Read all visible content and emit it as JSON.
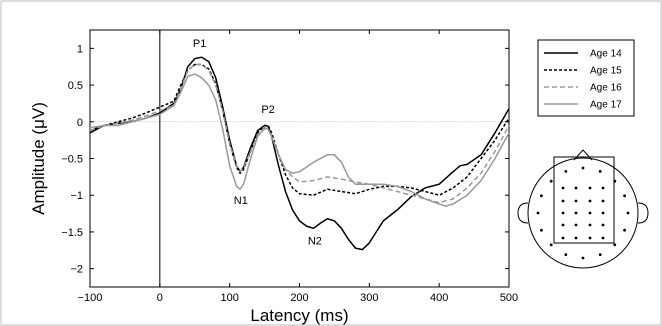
{
  "chart_data": {
    "type": "line",
    "xlabel": "Latency (ms)",
    "ylabel": "Amplitude (μV)",
    "xlim": [
      -100,
      500
    ],
    "ylim": [
      -2.25,
      1.25
    ],
    "xticks": [
      -100,
      0,
      100,
      200,
      300,
      400,
      500
    ],
    "yticks": [
      -2,
      -1.5,
      -1,
      -0.5,
      0,
      0.5,
      1
    ],
    "zero_line": true,
    "stimulus_marker_x": 0,
    "legend_position": "top-right",
    "annotations": [
      {
        "text": "P1",
        "x": 57,
        "y": 1.02
      },
      {
        "text": "P2",
        "x": 155,
        "y": 0.12
      },
      {
        "text": "N1",
        "x": 116,
        "y": -1.12
      },
      {
        "text": "N2",
        "x": 222,
        "y": -1.67
      }
    ],
    "series": [
      {
        "name": "Age 14",
        "color": "#000000",
        "dash": "solid",
        "x": [
          -100,
          -80,
          -60,
          -40,
          -20,
          0,
          20,
          30,
          40,
          50,
          60,
          70,
          80,
          90,
          100,
          110,
          115,
          120,
          130,
          140,
          150,
          155,
          160,
          170,
          180,
          190,
          200,
          210,
          220,
          230,
          240,
          250,
          260,
          270,
          280,
          290,
          300,
          310,
          320,
          340,
          360,
          380,
          400,
          420,
          430,
          440,
          460,
          480,
          500
        ],
        "y": [
          -0.15,
          -0.05,
          -0.02,
          0.0,
          0.05,
          0.12,
          0.25,
          0.45,
          0.75,
          0.86,
          0.88,
          0.82,
          0.6,
          0.2,
          -0.25,
          -0.6,
          -0.68,
          -0.62,
          -0.35,
          -0.12,
          -0.05,
          -0.06,
          -0.2,
          -0.6,
          -0.95,
          -1.2,
          -1.35,
          -1.42,
          -1.45,
          -1.38,
          -1.32,
          -1.35,
          -1.45,
          -1.6,
          -1.72,
          -1.74,
          -1.65,
          -1.5,
          -1.35,
          -1.2,
          -1.02,
          -0.9,
          -0.85,
          -0.68,
          -0.6,
          -0.58,
          -0.45,
          -0.15,
          0.18
        ]
      },
      {
        "name": "Age 15",
        "color": "#000000",
        "dash": "dotted",
        "x": [
          -100,
          -80,
          -60,
          -40,
          -20,
          0,
          20,
          30,
          40,
          50,
          60,
          70,
          80,
          90,
          100,
          110,
          115,
          120,
          130,
          140,
          150,
          155,
          160,
          170,
          180,
          190,
          200,
          220,
          240,
          260,
          280,
          300,
          320,
          340,
          360,
          380,
          400,
          420,
          440,
          460,
          480,
          500
        ],
        "y": [
          -0.12,
          -0.05,
          0.0,
          0.05,
          0.12,
          0.2,
          0.28,
          0.5,
          0.7,
          0.78,
          0.78,
          0.72,
          0.52,
          0.15,
          -0.3,
          -0.62,
          -0.7,
          -0.65,
          -0.4,
          -0.15,
          -0.05,
          -0.05,
          -0.15,
          -0.45,
          -0.72,
          -0.9,
          -0.98,
          -1.0,
          -0.92,
          -0.95,
          -0.98,
          -0.92,
          -0.88,
          -0.88,
          -0.9,
          -0.95,
          -1.0,
          -0.9,
          -0.75,
          -0.5,
          -0.25,
          0.05
        ]
      },
      {
        "name": "Age 16",
        "color": "#999999",
        "dash": "dashed",
        "x": [
          -100,
          -80,
          -60,
          -40,
          -20,
          0,
          20,
          30,
          40,
          50,
          60,
          70,
          80,
          90,
          100,
          110,
          115,
          120,
          130,
          140,
          150,
          155,
          160,
          170,
          180,
          190,
          200,
          220,
          240,
          260,
          280,
          300,
          320,
          340,
          360,
          380,
          400,
          420,
          440,
          460,
          480,
          500
        ],
        "y": [
          -0.12,
          -0.05,
          -0.02,
          0.02,
          0.08,
          0.15,
          0.22,
          0.45,
          0.7,
          0.78,
          0.78,
          0.7,
          0.5,
          0.15,
          -0.3,
          -0.6,
          -0.68,
          -0.63,
          -0.4,
          -0.18,
          -0.1,
          -0.1,
          -0.2,
          -0.45,
          -0.65,
          -0.75,
          -0.82,
          -0.8,
          -0.75,
          -0.78,
          -0.82,
          -0.85,
          -0.9,
          -0.95,
          -1.0,
          -1.05,
          -1.1,
          -1.05,
          -0.9,
          -0.7,
          -0.4,
          -0.05
        ]
      },
      {
        "name": "Age 17",
        "color": "#999999",
        "dash": "solid",
        "x": [
          -100,
          -80,
          -60,
          -40,
          -20,
          0,
          20,
          30,
          40,
          50,
          60,
          70,
          80,
          90,
          100,
          110,
          115,
          120,
          130,
          140,
          150,
          155,
          160,
          170,
          180,
          190,
          200,
          220,
          240,
          250,
          260,
          270,
          280,
          300,
          320,
          340,
          360,
          380,
          400,
          410,
          420,
          440,
          460,
          480,
          500
        ],
        "y": [
          -0.08,
          -0.05,
          -0.05,
          0.0,
          0.05,
          0.1,
          0.22,
          0.4,
          0.62,
          0.65,
          0.6,
          0.5,
          0.3,
          -0.1,
          -0.6,
          -0.88,
          -0.92,
          -0.85,
          -0.5,
          -0.2,
          -0.08,
          -0.1,
          -0.2,
          -0.45,
          -0.65,
          -0.7,
          -0.68,
          -0.55,
          -0.45,
          -0.45,
          -0.55,
          -0.75,
          -0.85,
          -0.85,
          -0.85,
          -0.88,
          -0.95,
          -1.05,
          -1.12,
          -1.15,
          -1.12,
          -1.0,
          -0.8,
          -0.5,
          -0.15
        ]
      }
    ]
  },
  "electrode_map": {
    "label": "electrode montage",
    "outline_color": "#000000"
  }
}
